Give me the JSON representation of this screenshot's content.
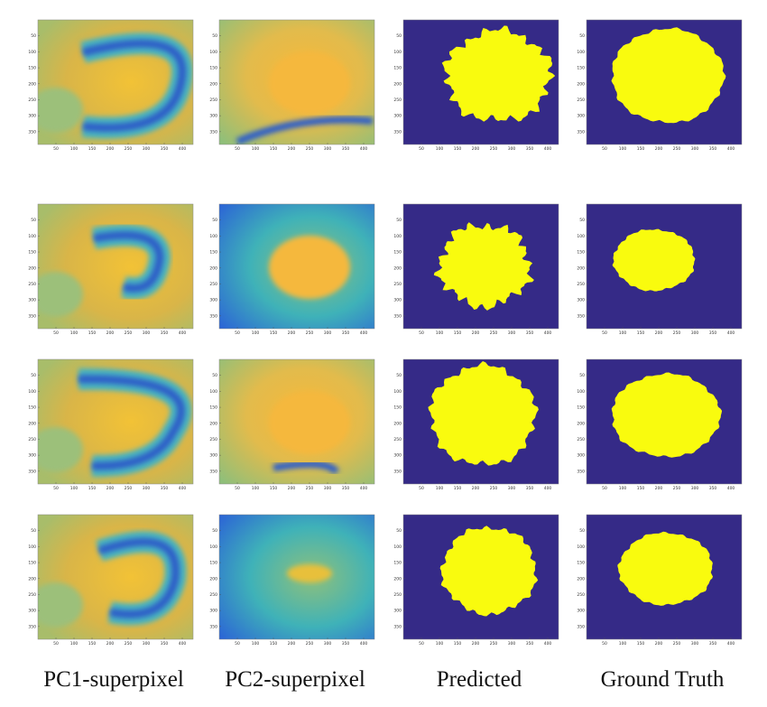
{
  "figure": {
    "columns": [
      "PC1-superpixel",
      "PC2-superpixel",
      "Predicted",
      "Ground Truth"
    ],
    "xlim": [
      0,
      430
    ],
    "ylim": [
      0,
      390
    ],
    "xticks": [
      50,
      100,
      150,
      200,
      250,
      300,
      350,
      400
    ],
    "yticks": [
      50,
      100,
      150,
      200,
      250,
      300,
      350
    ]
  }
}
